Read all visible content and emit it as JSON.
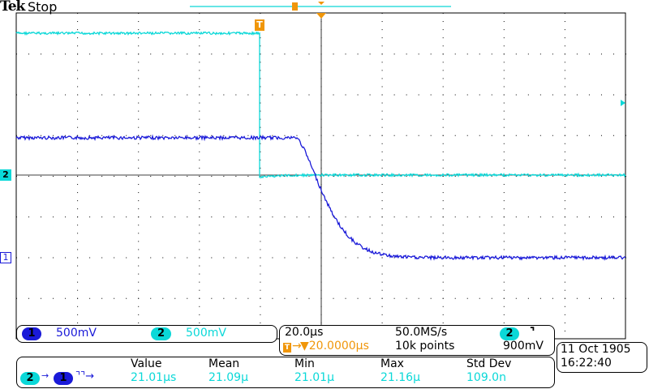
{
  "header": {
    "brand": "Tek",
    "status": "Stop"
  },
  "colors": {
    "ch1": "#1a1ad8",
    "ch2": "#0ad8d8",
    "trigger": "#f0960a"
  },
  "channels": [
    {
      "number": "1",
      "scale": "500mV"
    },
    {
      "number": "2",
      "scale": "500mV"
    }
  ],
  "markers": {
    "ch1": "1",
    "ch2": "2",
    "trigger": "T"
  },
  "timebase": {
    "scale": "20.0µs",
    "sample_rate": "50.0MS/s",
    "trigger_pos": "▼20.0000µs",
    "record": "10k points",
    "trigger_source": "2",
    "trigger_slope_icon": "falling-edge",
    "trigger_level": "900mV"
  },
  "datetime": {
    "date": "11 Oct  1905",
    "time": "16:22:40"
  },
  "measurement": {
    "source_from": "2",
    "source_to": "1",
    "type_icon": "delay-falling-falling",
    "headers": [
      "Value",
      "Mean",
      "Min",
      "Max",
      "Std Dev"
    ],
    "values": [
      "21.01µs",
      "21.09µ",
      "21.01µ",
      "21.16µ",
      "109.0n"
    ]
  }
}
